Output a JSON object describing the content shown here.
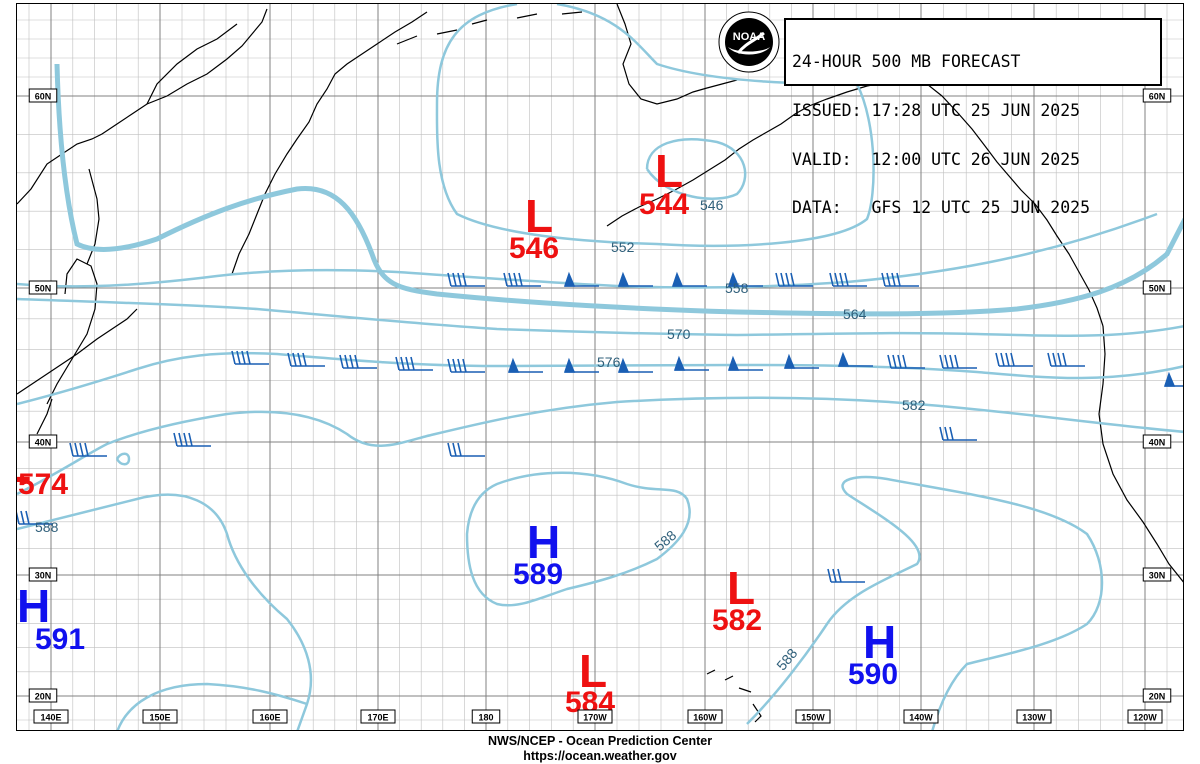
{
  "header": {
    "lines": [
      "24-HOUR 500 MB FORECAST",
      "ISSUED: 17:28 UTC 25 JUN 2025",
      "VALID:  12:00 UTC 26 JUN 2025",
      "DATA:   GFS 12 UTC 25 JUN 2025"
    ],
    "logo_text": "NOAA"
  },
  "footer": {
    "line1": "NWS/NCEP - Ocean Prediction Center",
    "line2": "https://ocean.weather.gov"
  },
  "grid": {
    "lon_labels": [
      "140E",
      "150E",
      "160E",
      "170E",
      "180",
      "170W",
      "160W",
      "150W",
      "140W",
      "130W",
      "120W"
    ],
    "lat_labels": [
      "60N",
      "50N",
      "40N",
      "30N",
      "20N"
    ]
  },
  "contour_labels": [
    "552",
    "546",
    "558",
    "564",
    "570",
    "576",
    "582",
    "588",
    "588",
    "588",
    "546"
  ],
  "systems": [
    {
      "type": "L",
      "value": "544",
      "color": "#ee1111"
    },
    {
      "type": "L",
      "value": "546",
      "color": "#ee1111"
    },
    {
      "type": "L",
      "value": "574",
      "color": "#ee1111"
    },
    {
      "type": "H",
      "value": "589",
      "color": "#1111ee"
    },
    {
      "type": "H",
      "value": "591",
      "color": "#1111ee"
    },
    {
      "type": "L",
      "value": "582",
      "color": "#ee1111"
    },
    {
      "type": "L",
      "value": "584",
      "color": "#ee1111"
    },
    {
      "type": "H",
      "value": "590",
      "color": "#1111ee"
    }
  ],
  "colors": {
    "contour": "#8ec8dc",
    "wind": "#1a5fb4",
    "low": "#ee1111",
    "high": "#1111ee",
    "grid": "#bfbfbf",
    "grid_major": "#808080"
  }
}
